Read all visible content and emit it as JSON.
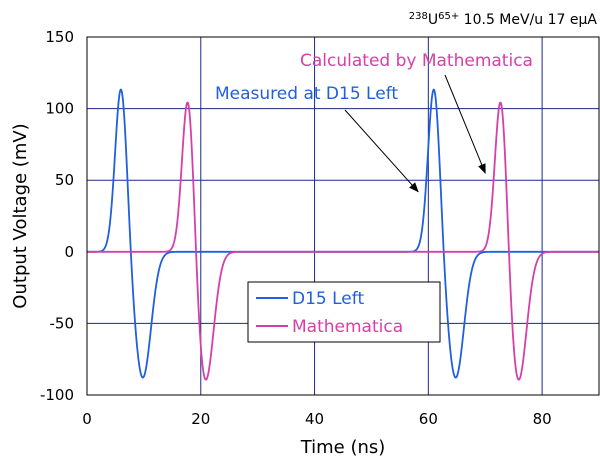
{
  "chart_data": {
    "type": "line",
    "title_parts": [
      "238",
      "U",
      "65+",
      " 10.5 MeV/u 17 e",
      "μ",
      "A"
    ],
    "xlabel": "Time (ns)",
    "ylabel": "Output Voltage (mV)",
    "xlim": [
      0,
      90
    ],
    "ylim": [
      -100,
      150
    ],
    "xticks": [
      "0",
      "20",
      "40",
      "60",
      "80"
    ],
    "yticks": [
      "150",
      "100",
      "50",
      "0",
      "-50",
      "-100"
    ],
    "grid": true,
    "legend_placement": "lower-center",
    "series": [
      {
        "name": "D15 Left",
        "color": "#1f5fe0",
        "peak_times": [
          6.0,
          61.0
        ],
        "peak_mV": 116,
        "trough_times": [
          9.8,
          64.8
        ],
        "trough_mV": -88
      },
      {
        "name": "Mathematica",
        "color": "#d63fa8",
        "peak_times": [
          17.8,
          72.8
        ],
        "peak_mV": 114,
        "trough_times": [
          20.8,
          75.8
        ],
        "trough_mV": -91
      }
    ],
    "annotations": [
      {
        "text": "Measured at D15 Left",
        "color": "#1f5fe0",
        "target_x": 58.2,
        "target_y": 42
      },
      {
        "text": "Calculated by Mathematica",
        "color": "#d63fa8",
        "target_x": 70.0,
        "target_y": 55
      }
    ]
  }
}
